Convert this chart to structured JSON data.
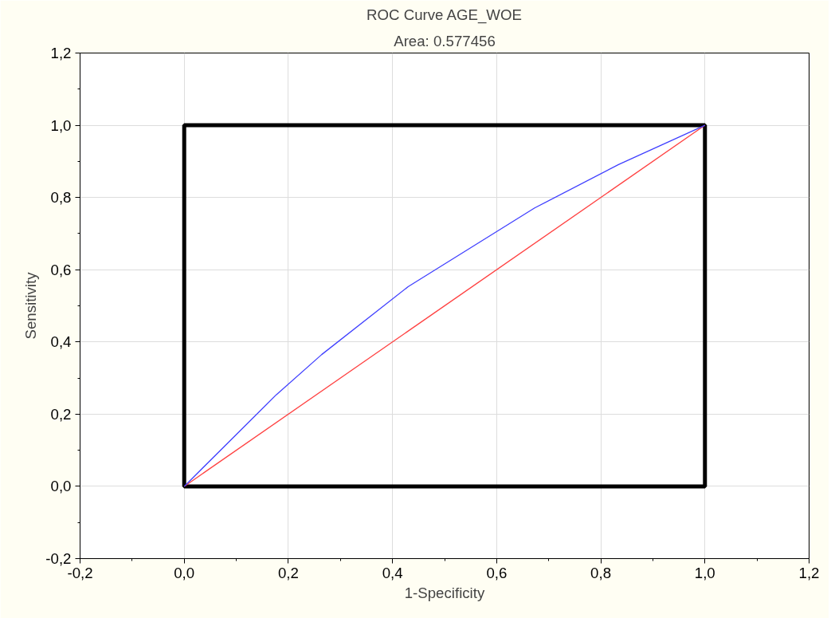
{
  "chart_data": {
    "type": "line",
    "title": "ROC Curve AGE_WOE",
    "subtitle": "Area: 0.577456",
    "xlabel": "1-Specificity",
    "ylabel": "Sensitivity",
    "xlim": [
      -0.2,
      1.2
    ],
    "ylim": [
      -0.2,
      1.2
    ],
    "xticks": [
      {
        "value": -0.2,
        "label": "-0,2"
      },
      {
        "value": 0,
        "label": "0,0"
      },
      {
        "value": 0.2,
        "label": "0,2"
      },
      {
        "value": 0.4,
        "label": "0,4"
      },
      {
        "value": 0.6,
        "label": "0,6"
      },
      {
        "value": 0.8,
        "label": "0,8"
      },
      {
        "value": 1,
        "label": "1,0"
      },
      {
        "value": 1.2,
        "label": "1,2"
      }
    ],
    "yticks": [
      {
        "value": -0.2,
        "label": "-0,2"
      },
      {
        "value": 0,
        "label": "0,0"
      },
      {
        "value": 0.2,
        "label": "0,2"
      },
      {
        "value": 0.4,
        "label": "0,4"
      },
      {
        "value": 0.6,
        "label": "0,6"
      },
      {
        "value": 0.8,
        "label": "0,8"
      },
      {
        "value": 1,
        "label": "1,0"
      },
      {
        "value": 1.2,
        "label": "1,2"
      }
    ],
    "grid": true,
    "marker": "none",
    "line_style": "solid",
    "series": [
      {
        "color": "#ff4040",
        "x": [
          0,
          1
        ],
        "values": [
          0,
          1
        ]
      },
      {
        "color": "#4040ff",
        "x": [
          0,
          0.177,
          0.264,
          0.43,
          0.673,
          0.834,
          1
        ],
        "values": [
          0,
          0.254,
          0.365,
          0.553,
          0.771,
          0.891,
          1
        ]
      }
    ]
  }
}
